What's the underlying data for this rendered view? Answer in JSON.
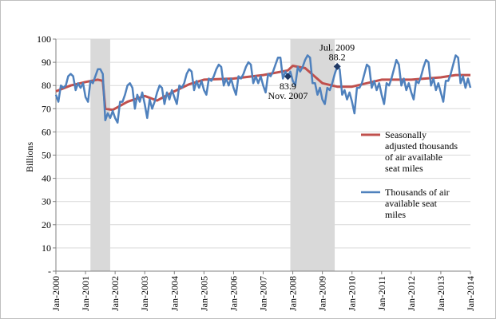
{
  "chart_data": {
    "type": "line",
    "title": "",
    "xlabel": "",
    "ylabel": "Billions",
    "ylim": [
      0,
      100
    ],
    "y_ticks": [
      0,
      10,
      20,
      30,
      40,
      50,
      60,
      70,
      80,
      90,
      100
    ],
    "y_tick_labels": [
      "-",
      "10",
      "20",
      "30",
      "40",
      "50",
      "60",
      "70",
      "80",
      "90",
      "100"
    ],
    "x_start": "2000-01",
    "x_end": "2014-01",
    "x_tick_labels": [
      "Jan-2000",
      "Jan-2001",
      "Jan-2002",
      "Jan-2003",
      "Jan-2004",
      "Jan-2005",
      "Jan-2006",
      "Jan-2007",
      "Jan-2008",
      "Jan-2009",
      "Jan-2010",
      "Jan-2011",
      "Jan-2012",
      "Jan-2013",
      "Jan-2014"
    ],
    "grid": "horizontal",
    "legend_position": "right",
    "recession_bands": [
      {
        "start": "2001-03",
        "end": "2001-11"
      },
      {
        "start": "2007-12",
        "end": "2009-06"
      }
    ],
    "series": [
      {
        "name": "Seasonally adjusted thousands of  air available seat miles",
        "color": "#c0504d",
        "legend_lines": [
          "Seasonally",
          "adjusted thousands",
          "of  air available",
          "seat miles"
        ],
        "values": [
          {
            "x": "2000-01",
            "y": 77.5
          },
          {
            "x": "2000-07",
            "y": 80.0
          },
          {
            "x": "2001-01",
            "y": 81.5
          },
          {
            "x": "2001-06",
            "y": 82.5
          },
          {
            "x": "2001-08",
            "y": 82.0
          },
          {
            "x": "2001-09",
            "y": 70.0
          },
          {
            "x": "2001-12",
            "y": 69.5
          },
          {
            "x": "2002-06",
            "y": 73.0
          },
          {
            "x": "2003-01",
            "y": 75.5
          },
          {
            "x": "2003-06",
            "y": 73.5
          },
          {
            "x": "2004-01",
            "y": 77.5
          },
          {
            "x": "2004-07",
            "y": 80.5
          },
          {
            "x": "2005-01",
            "y": 82.5
          },
          {
            "x": "2006-01",
            "y": 83.0
          },
          {
            "x": "2007-01",
            "y": 84.5
          },
          {
            "x": "2007-11",
            "y": 86.5
          },
          {
            "x": "2008-01",
            "y": 88.5
          },
          {
            "x": "2008-06",
            "y": 87.5
          },
          {
            "x": "2009-01",
            "y": 81.0
          },
          {
            "x": "2009-07",
            "y": 79.5
          },
          {
            "x": "2010-01",
            "y": 79.5
          },
          {
            "x": "2010-07",
            "y": 81.0
          },
          {
            "x": "2011-01",
            "y": 82.5
          },
          {
            "x": "2012-01",
            "y": 82.5
          },
          {
            "x": "2013-01",
            "y": 83.5
          },
          {
            "x": "2013-07",
            "y": 84.5
          },
          {
            "x": "2014-01",
            "y": 84.5
          }
        ]
      },
      {
        "name": "Thousands of air available seat miles",
        "color": "#4f81bd",
        "legend_lines": [
          "Thousands of air",
          "available seat",
          "miles"
        ],
        "values": [
          {
            "x": "2000-01",
            "y": 76
          },
          {
            "x": "2000-02",
            "y": 73
          },
          {
            "x": "2000-03",
            "y": 80
          },
          {
            "x": "2000-04",
            "y": 79
          },
          {
            "x": "2000-05",
            "y": 80
          },
          {
            "x": "2000-06",
            "y": 84
          },
          {
            "x": "2000-07",
            "y": 85
          },
          {
            "x": "2000-08",
            "y": 84
          },
          {
            "x": "2000-09",
            "y": 78
          },
          {
            "x": "2000-10",
            "y": 81
          },
          {
            "x": "2000-11",
            "y": 79
          },
          {
            "x": "2000-12",
            "y": 81
          },
          {
            "x": "2001-01",
            "y": 75
          },
          {
            "x": "2001-02",
            "y": 73
          },
          {
            "x": "2001-03",
            "y": 82
          },
          {
            "x": "2001-04",
            "y": 81
          },
          {
            "x": "2001-05",
            "y": 84
          },
          {
            "x": "2001-06",
            "y": 87
          },
          {
            "x": "2001-07",
            "y": 87
          },
          {
            "x": "2001-08",
            "y": 85
          },
          {
            "x": "2001-09",
            "y": 65
          },
          {
            "x": "2001-10",
            "y": 68
          },
          {
            "x": "2001-11",
            "y": 66
          },
          {
            "x": "2001-12",
            "y": 69
          },
          {
            "x": "2002-01",
            "y": 66
          },
          {
            "x": "2002-02",
            "y": 64
          },
          {
            "x": "2002-03",
            "y": 73
          },
          {
            "x": "2002-04",
            "y": 73
          },
          {
            "x": "2002-05",
            "y": 76
          },
          {
            "x": "2002-06",
            "y": 80
          },
          {
            "x": "2002-07",
            "y": 81
          },
          {
            "x": "2002-08",
            "y": 79
          },
          {
            "x": "2002-09",
            "y": 70
          },
          {
            "x": "2002-10",
            "y": 76
          },
          {
            "x": "2002-11",
            "y": 73
          },
          {
            "x": "2002-12",
            "y": 77
          },
          {
            "x": "2003-01",
            "y": 72
          },
          {
            "x": "2003-02",
            "y": 66
          },
          {
            "x": "2003-03",
            "y": 74
          },
          {
            "x": "2003-04",
            "y": 70
          },
          {
            "x": "2003-05",
            "y": 73
          },
          {
            "x": "2003-06",
            "y": 77
          },
          {
            "x": "2003-07",
            "y": 80
          },
          {
            "x": "2003-08",
            "y": 79
          },
          {
            "x": "2003-09",
            "y": 72
          },
          {
            "x": "2003-10",
            "y": 77
          },
          {
            "x": "2003-11",
            "y": 74
          },
          {
            "x": "2003-12",
            "y": 78
          },
          {
            "x": "2004-01",
            "y": 75
          },
          {
            "x": "2004-02",
            "y": 72
          },
          {
            "x": "2004-03",
            "y": 80
          },
          {
            "x": "2004-04",
            "y": 79
          },
          {
            "x": "2004-05",
            "y": 81
          },
          {
            "x": "2004-06",
            "y": 85
          },
          {
            "x": "2004-07",
            "y": 87
          },
          {
            "x": "2004-08",
            "y": 86
          },
          {
            "x": "2004-09",
            "y": 78
          },
          {
            "x": "2004-10",
            "y": 82
          },
          {
            "x": "2004-11",
            "y": 79
          },
          {
            "x": "2004-12",
            "y": 82
          },
          {
            "x": "2005-01",
            "y": 78
          },
          {
            "x": "2005-02",
            "y": 76
          },
          {
            "x": "2005-03",
            "y": 83
          },
          {
            "x": "2005-04",
            "y": 82
          },
          {
            "x": "2005-05",
            "y": 84
          },
          {
            "x": "2005-06",
            "y": 87
          },
          {
            "x": "2005-07",
            "y": 89
          },
          {
            "x": "2005-08",
            "y": 88
          },
          {
            "x": "2005-09",
            "y": 80
          },
          {
            "x": "2005-10",
            "y": 83
          },
          {
            "x": "2005-11",
            "y": 80
          },
          {
            "x": "2005-12",
            "y": 83
          },
          {
            "x": "2006-01",
            "y": 79
          },
          {
            "x": "2006-02",
            "y": 76
          },
          {
            "x": "2006-03",
            "y": 84
          },
          {
            "x": "2006-04",
            "y": 83
          },
          {
            "x": "2006-05",
            "y": 85
          },
          {
            "x": "2006-06",
            "y": 88
          },
          {
            "x": "2006-07",
            "y": 90
          },
          {
            "x": "2006-08",
            "y": 89
          },
          {
            "x": "2006-09",
            "y": 81
          },
          {
            "x": "2006-10",
            "y": 84
          },
          {
            "x": "2006-11",
            "y": 81
          },
          {
            "x": "2006-12",
            "y": 84
          },
          {
            "x": "2007-01",
            "y": 80
          },
          {
            "x": "2007-02",
            "y": 77
          },
          {
            "x": "2007-03",
            "y": 85
          },
          {
            "x": "2007-04",
            "y": 84
          },
          {
            "x": "2007-05",
            "y": 86
          },
          {
            "x": "2007-06",
            "y": 89
          },
          {
            "x": "2007-07",
            "y": 92
          },
          {
            "x": "2007-08",
            "y": 92
          },
          {
            "x": "2007-09",
            "y": 83
          },
          {
            "x": "2007-10",
            "y": 86
          },
          {
            "x": "2007-11",
            "y": 83.9
          },
          {
            "x": "2007-12",
            "y": 86
          },
          {
            "x": "2008-01",
            "y": 82
          },
          {
            "x": "2008-02",
            "y": 80
          },
          {
            "x": "2008-03",
            "y": 88
          },
          {
            "x": "2008-04",
            "y": 86
          },
          {
            "x": "2008-05",
            "y": 88
          },
          {
            "x": "2008-06",
            "y": 91
          },
          {
            "x": "2008-07",
            "y": 93
          },
          {
            "x": "2008-08",
            "y": 92
          },
          {
            "x": "2008-09",
            "y": 81
          },
          {
            "x": "2008-10",
            "y": 81
          },
          {
            "x": "2008-11",
            "y": 76
          },
          {
            "x": "2008-12",
            "y": 79
          },
          {
            "x": "2009-01",
            "y": 74
          },
          {
            "x": "2009-02",
            "y": 72
          },
          {
            "x": "2009-03",
            "y": 79
          },
          {
            "x": "2009-04",
            "y": 78
          },
          {
            "x": "2009-05",
            "y": 81
          },
          {
            "x": "2009-06",
            "y": 85
          },
          {
            "x": "2009-07",
            "y": 88.2
          },
          {
            "x": "2009-08",
            "y": 87
          },
          {
            "x": "2009-09",
            "y": 76
          },
          {
            "x": "2009-10",
            "y": 78
          },
          {
            "x": "2009-11",
            "y": 74
          },
          {
            "x": "2009-12",
            "y": 77
          },
          {
            "x": "2010-01",
            "y": 73
          },
          {
            "x": "2010-02",
            "y": 68
          },
          {
            "x": "2010-03",
            "y": 79
          },
          {
            "x": "2010-04",
            "y": 79
          },
          {
            "x": "2010-05",
            "y": 81
          },
          {
            "x": "2010-06",
            "y": 85
          },
          {
            "x": "2010-07",
            "y": 89
          },
          {
            "x": "2010-08",
            "y": 88
          },
          {
            "x": "2010-09",
            "y": 79
          },
          {
            "x": "2010-10",
            "y": 82
          },
          {
            "x": "2010-11",
            "y": 78
          },
          {
            "x": "2010-12",
            "y": 81
          },
          {
            "x": "2011-01",
            "y": 76
          },
          {
            "x": "2011-02",
            "y": 72
          },
          {
            "x": "2011-03",
            "y": 81
          },
          {
            "x": "2011-04",
            "y": 80
          },
          {
            "x": "2011-05",
            "y": 83
          },
          {
            "x": "2011-06",
            "y": 87
          },
          {
            "x": "2011-07",
            "y": 91
          },
          {
            "x": "2011-08",
            "y": 89
          },
          {
            "x": "2011-09",
            "y": 80
          },
          {
            "x": "2011-10",
            "y": 83
          },
          {
            "x": "2011-11",
            "y": 78
          },
          {
            "x": "2011-12",
            "y": 81
          },
          {
            "x": "2012-01",
            "y": 77
          },
          {
            "x": "2012-02",
            "y": 74
          },
          {
            "x": "2012-03",
            "y": 82
          },
          {
            "x": "2012-04",
            "y": 81
          },
          {
            "x": "2012-05",
            "y": 84
          },
          {
            "x": "2012-06",
            "y": 88
          },
          {
            "x": "2012-07",
            "y": 91
          },
          {
            "x": "2012-08",
            "y": 90
          },
          {
            "x": "2012-09",
            "y": 80
          },
          {
            "x": "2012-10",
            "y": 83
          },
          {
            "x": "2012-11",
            "y": 78
          },
          {
            "x": "2012-12",
            "y": 81
          },
          {
            "x": "2013-01",
            "y": 77
          },
          {
            "x": "2013-02",
            "y": 73
          },
          {
            "x": "2013-03",
            "y": 82
          },
          {
            "x": "2013-04",
            "y": 82
          },
          {
            "x": "2013-05",
            "y": 85
          },
          {
            "x": "2013-06",
            "y": 89
          },
          {
            "x": "2013-07",
            "y": 93
          },
          {
            "x": "2013-08",
            "y": 92
          },
          {
            "x": "2013-09",
            "y": 81
          },
          {
            "x": "2013-10",
            "y": 84
          },
          {
            "x": "2013-11",
            "y": 79
          },
          {
            "x": "2013-12",
            "y": 83
          },
          {
            "x": "2014-01",
            "y": 79
          }
        ]
      }
    ],
    "annotations": [
      {
        "x": "2007-11",
        "y": 83.9,
        "lines": [
          "83.9",
          "Nov. 2007"
        ],
        "placement": "below"
      },
      {
        "x": "2009-07",
        "y": 88.2,
        "lines": [
          "Jul. 2009",
          "88.2"
        ],
        "placement": "above"
      }
    ]
  }
}
